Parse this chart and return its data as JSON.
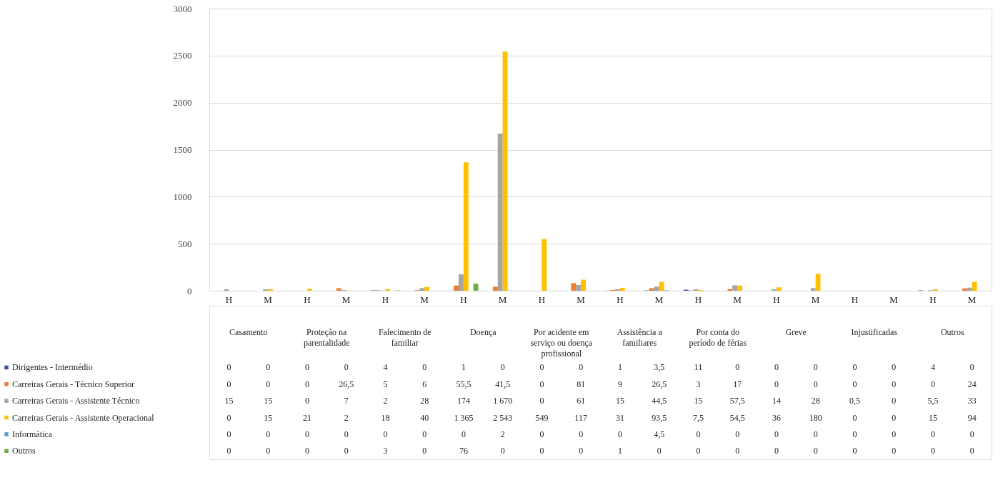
{
  "chart_data": {
    "type": "bar",
    "categories": [
      "H",
      "M",
      "H",
      "M",
      "H",
      "M",
      "H",
      "M",
      "H",
      "M",
      "H",
      "M",
      "H",
      "M",
      "H",
      "M",
      "H",
      "M",
      "H",
      "M"
    ],
    "annotations": [
      "Casamento",
      "Proteção na parentalidade",
      "Falecimento de familiar",
      "Doença",
      "Por acidente em serviço ou doença profissional",
      "Assistência a familiares",
      "Por conta do período de férias",
      "Greve",
      "Injustificadas",
      "Outros"
    ],
    "ylim": [
      0,
      3000
    ],
    "yticks": [
      0,
      500,
      1000,
      1500,
      2000,
      2500,
      3000
    ],
    "grid": "y",
    "legend": "bottom left",
    "series": [
      {
        "name": "Dirigentes - Intermédio",
        "color": "#3f4fa8",
        "values": [
          0,
          0,
          0,
          0,
          4,
          0,
          1,
          0,
          0,
          0,
          1,
          3.5,
          11,
          0,
          0,
          0,
          0,
          0,
          4,
          0
        ],
        "value_labels": [
          "0",
          "0",
          "0",
          "0",
          "4",
          "0",
          "1",
          "0",
          "0",
          "0",
          "1",
          "3,5",
          "11",
          "0",
          "0",
          "0",
          "0",
          "0",
          "4",
          "0"
        ]
      },
      {
        "name": "Carreiras Gerais - Técnico Superior",
        "color": "#ed7d31",
        "values": [
          0,
          0,
          0,
          26.5,
          5,
          6,
          55.5,
          41.5,
          0,
          81,
          9,
          26.5,
          3,
          17,
          0,
          0,
          0,
          0,
          0,
          24
        ],
        "value_labels": [
          "0",
          "0",
          "0",
          "26,5",
          "5",
          "6",
          "55,5",
          "41,5",
          "0",
          "81",
          "9",
          "26,5",
          "3",
          "17",
          "0",
          "0",
          "0",
          "0",
          "0",
          "24"
        ]
      },
      {
        "name": "Carreiras Gerais - Assistente Técnico",
        "color": "#a5a5a5",
        "values": [
          15,
          15,
          0,
          7,
          2,
          28,
          174,
          1670,
          0,
          61,
          15,
          44.5,
          15,
          57.5,
          14,
          28,
          0.5,
          0,
          5.5,
          33
        ],
        "value_labels": [
          "15",
          "15",
          "0",
          "7",
          "2",
          "28",
          "174",
          "1 670",
          "0",
          "61",
          "15",
          "44,5",
          "15",
          "57,5",
          "14",
          "28",
          "0,5",
          "0",
          "5,5",
          "33"
        ]
      },
      {
        "name": "Carreiras Gerais - Assistente Operacional",
        "color": "#ffc000",
        "values": [
          0,
          15,
          21,
          2,
          18,
          40,
          1365,
          2543,
          549,
          117,
          31,
          93.5,
          7.5,
          54.5,
          36,
          180,
          0,
          0,
          15,
          94
        ],
        "value_labels": [
          "0",
          "15",
          "21",
          "2",
          "18",
          "40",
          "1 365",
          "2 543",
          "549",
          "117",
          "31",
          "93,5",
          "7,5",
          "54,5",
          "36",
          "180",
          "0",
          "0",
          "15",
          "94"
        ]
      },
      {
        "name": "Informática",
        "color": "#5b9bd5",
        "values": [
          0,
          0,
          0,
          0,
          0,
          0,
          0,
          2,
          0,
          0,
          0,
          4.5,
          0,
          0,
          0,
          0,
          0,
          0,
          0,
          0
        ],
        "value_labels": [
          "0",
          "0",
          "0",
          "0",
          "0",
          "0",
          "0",
          "2",
          "0",
          "0",
          "0",
          "4,5",
          "0",
          "0",
          "0",
          "0",
          "0",
          "0",
          "0",
          "0"
        ]
      },
      {
        "name": "Outros",
        "color": "#70ad47",
        "values": [
          0,
          0,
          0,
          0,
          3,
          0,
          76,
          0,
          0,
          0,
          1,
          0,
          0,
          0,
          0,
          0,
          0,
          0,
          0,
          0
        ],
        "value_labels": [
          "0",
          "0",
          "0",
          "0",
          "3",
          "0",
          "76",
          "0",
          "0",
          "0",
          "1",
          "0",
          "0",
          "0",
          "0",
          "0",
          "0",
          "0",
          "0",
          "0"
        ]
      }
    ]
  }
}
